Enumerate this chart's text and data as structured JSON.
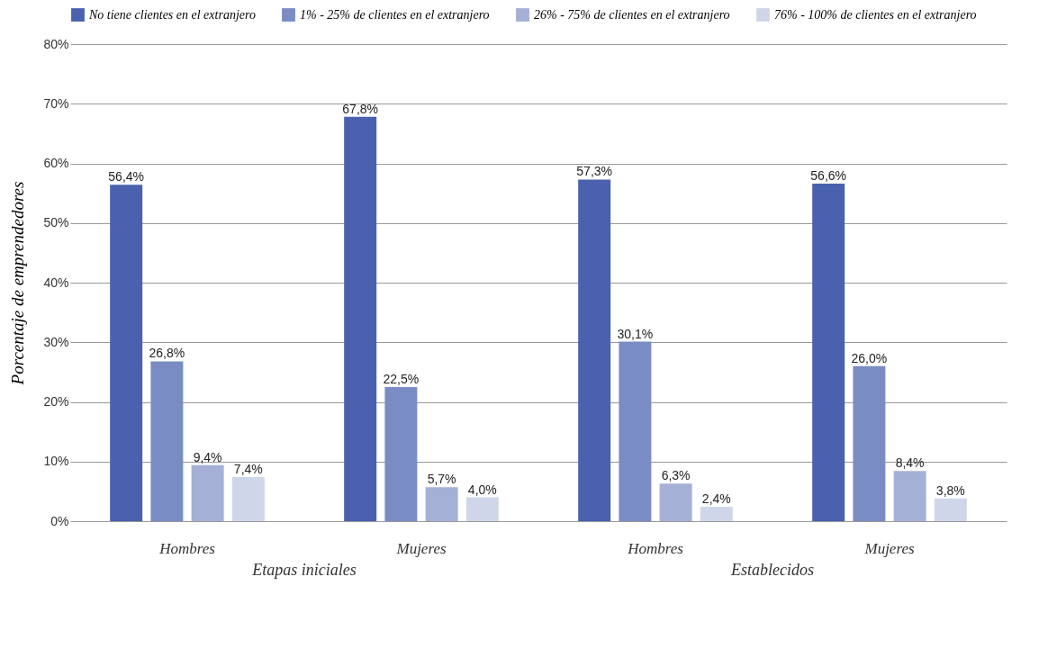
{
  "chart_data": {
    "type": "bar",
    "ylabel": "Porcentaje de emprendedores",
    "categories": [
      "Hombres",
      "Mujeres",
      "Hombres",
      "Mujeres"
    ],
    "series": [
      {
        "name": "No tiene clientes en el extranjero",
        "color": "#4a62ae",
        "values": [
          56.4,
          67.8,
          57.3,
          56.6
        ],
        "value_labels": [
          "56,4%",
          "67,8%",
          "57,3%",
          "56,6%"
        ]
      },
      {
        "name": "1% - 25% de clientes en el extranjero",
        "color": "#7a8cc4",
        "values": [
          26.8,
          22.5,
          30.1,
          26.0
        ],
        "value_labels": [
          "26,8%",
          "22,5%",
          "30,1%",
          "26,0%"
        ]
      },
      {
        "name": "26% - 75% de clientes en el extranjero",
        "color": "#a5b0d6",
        "values": [
          9.4,
          5.7,
          6.3,
          8.4
        ],
        "value_labels": [
          "9,4%",
          "5,7%",
          "6,3%",
          "8,4%"
        ]
      },
      {
        "name": "76% - 100% de clientes en el extranjero",
        "color": "#d0d6ea",
        "values": [
          7.4,
          4.0,
          2.4,
          3.8
        ],
        "value_labels": [
          "7,4%",
          "4,0%",
          "2,4%",
          "3,8%"
        ]
      }
    ],
    "ylim": [
      0,
      80
    ],
    "yticks": [
      {
        "value": 0,
        "label": "0%"
      },
      {
        "value": 10,
        "label": "10%"
      },
      {
        "value": 20,
        "label": "20%"
      },
      {
        "value": 30,
        "label": "30%"
      },
      {
        "value": 40,
        "label": "40%"
      },
      {
        "value": 50,
        "label": "50%"
      },
      {
        "value": 60,
        "label": "60%"
      },
      {
        "value": 70,
        "label": "70%"
      },
      {
        "value": 80,
        "label": "80%"
      }
    ],
    "grid": "y",
    "legend": "top",
    "annotations": [
      "Etapas iniciales",
      "Establecidos"
    ]
  }
}
